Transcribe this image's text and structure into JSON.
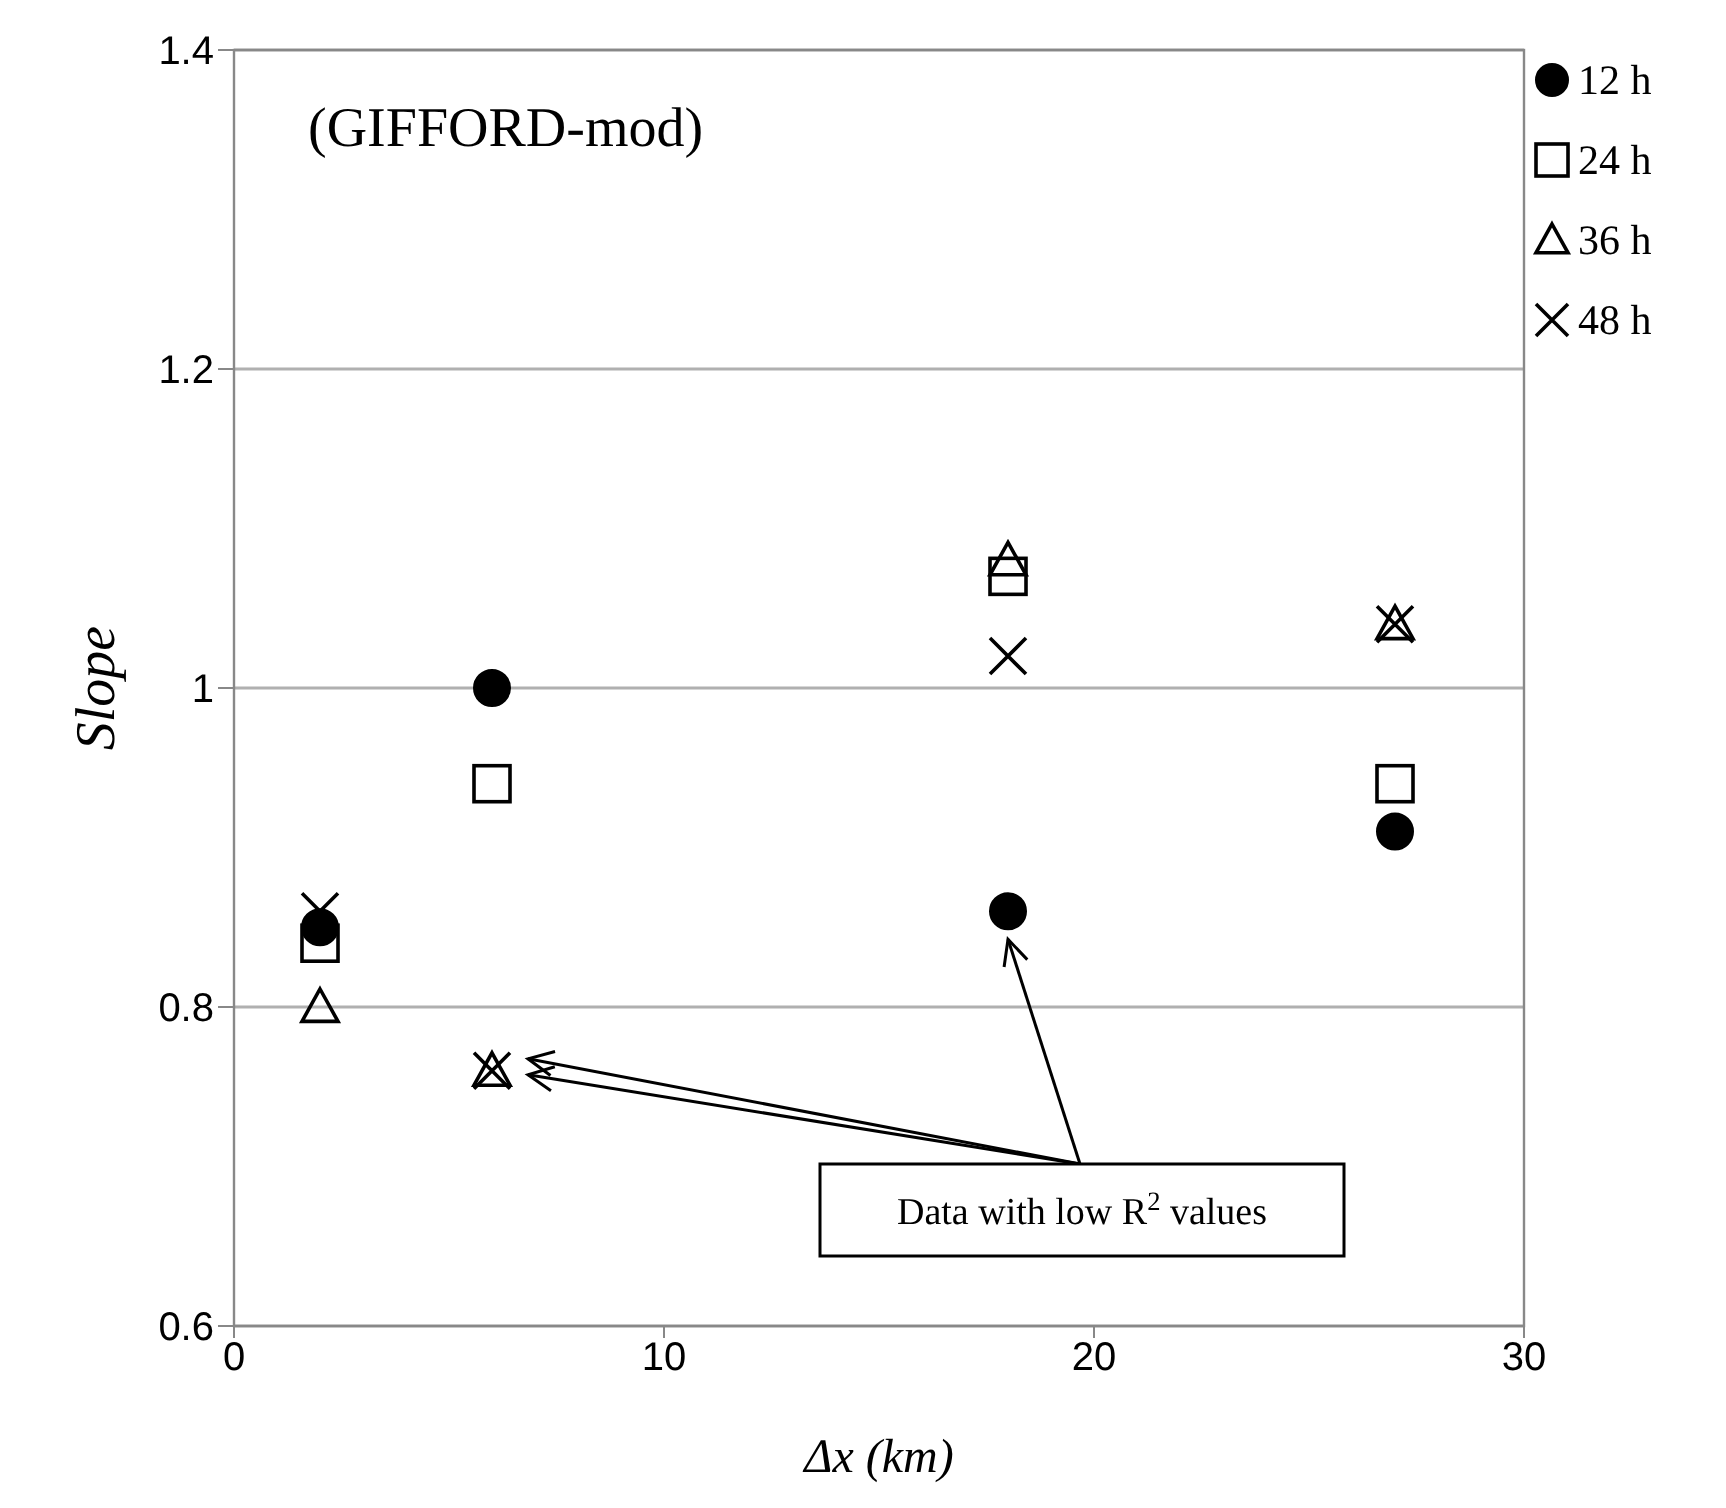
{
  "chart_data": {
    "type": "scatter",
    "title": "(GIFFORD-mod)",
    "xlabel": "Δx (km)",
    "ylabel": "Slope",
    "x": [
      2,
      6,
      18,
      27
    ],
    "series": [
      {
        "name": "12 h",
        "color": "#000000",
        "marker": "circle",
        "values": [
          0.85,
          1.0,
          0.86,
          0.91
        ]
      },
      {
        "name": "24 h",
        "color": "#000000",
        "marker": "square",
        "values": [
          0.84,
          0.94,
          1.07,
          0.94
        ]
      },
      {
        "name": "36 h",
        "color": "#000000",
        "marker": "triangle",
        "values": [
          0.8,
          0.76,
          1.08,
          1.04
        ]
      },
      {
        "name": "48 h",
        "color": "#000000",
        "marker": "cross",
        "values": [
          0.86,
          0.76,
          1.02,
          1.04
        ]
      }
    ],
    "xlim": [
      0,
      30
    ],
    "xticks": [
      0,
      10,
      20,
      30
    ],
    "ylim": [
      0.6,
      1.4
    ],
    "yticks": [
      0.6,
      0.8,
      1,
      1.2,
      1.4
    ],
    "grid": "y",
    "legend": "top right",
    "annotations": [
      "Data with low R$^{2}$ values"
    ]
  }
}
